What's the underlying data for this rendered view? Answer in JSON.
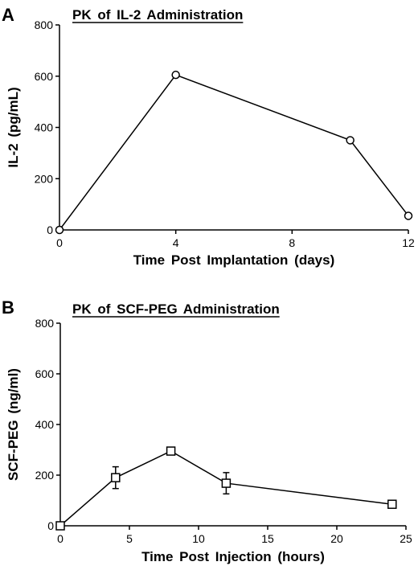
{
  "chart_data": [
    {
      "type": "line",
      "panel_label": "A",
      "title": "PK of IL-2 Administration",
      "xlabel": "Time Post Implantation (days)",
      "ylabel": "IL-2 (pg/mL)",
      "xlim": [
        0,
        12
      ],
      "ylim": [
        0,
        800
      ],
      "xticks": [
        0,
        4,
        8,
        12
      ],
      "yticks": [
        0,
        200,
        400,
        600,
        800
      ],
      "marker": "circle",
      "grid": false,
      "series": [
        {
          "x": [
            0,
            4,
            10,
            12
          ],
          "y": [
            0,
            605,
            350,
            55
          ],
          "err": [
            0,
            0,
            0,
            0
          ]
        }
      ]
    },
    {
      "type": "line",
      "panel_label": "B",
      "title": "PK of SCF-PEG Administration",
      "xlabel": "Time Post Injection (hours)",
      "ylabel": "SCF-PEG (ng/ml)",
      "xlim": [
        0,
        25
      ],
      "ylim": [
        0,
        800
      ],
      "xticks": [
        0,
        5,
        10,
        15,
        20,
        25
      ],
      "yticks": [
        0,
        200,
        400,
        600,
        800
      ],
      "marker": "square",
      "grid": false,
      "series": [
        {
          "x": [
            0,
            4,
            8,
            12,
            24
          ],
          "y": [
            0,
            190,
            295,
            168,
            85
          ],
          "err": [
            0,
            43,
            0,
            42,
            0
          ]
        }
      ]
    }
  ]
}
